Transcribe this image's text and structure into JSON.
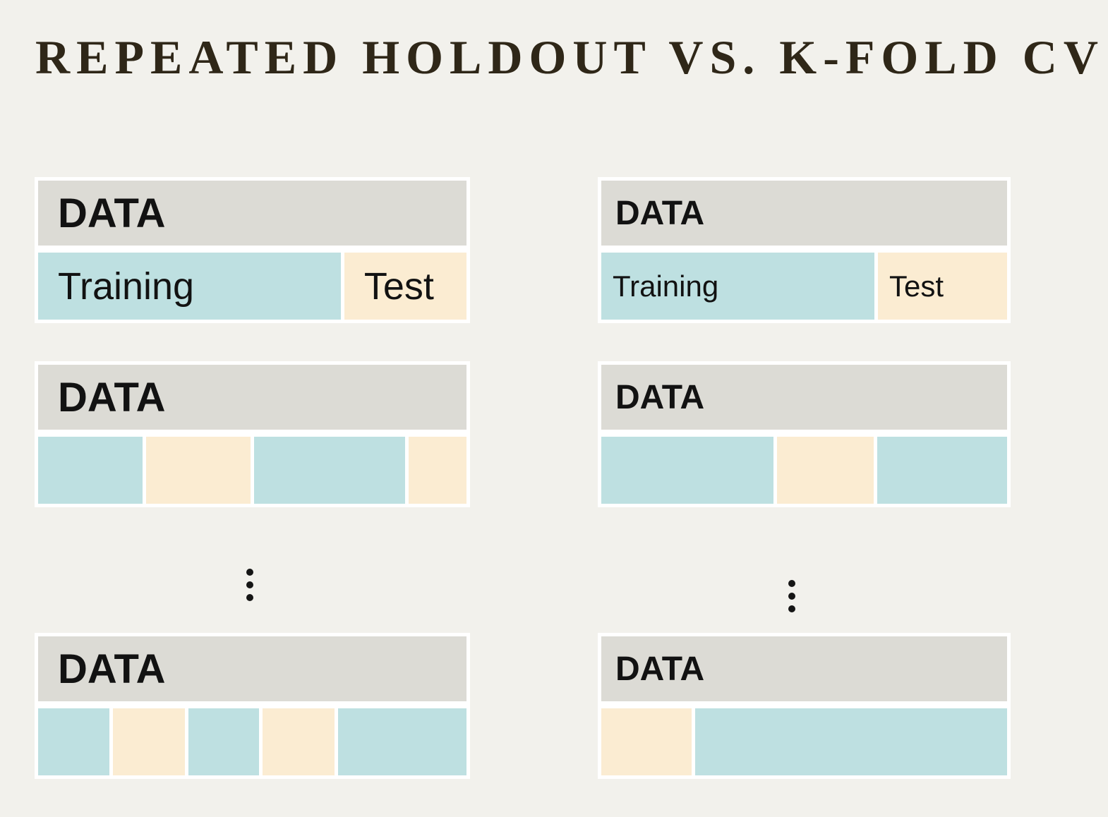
{
  "title": "REPEATED HOLDOUT VS. K-FOLD CV",
  "labels": {
    "data": "DATA",
    "training": "Training",
    "test": "Test"
  },
  "colors": {
    "background": "#f2f1ec",
    "block_frame": "#ffffff",
    "header_bar": "#dcdbd5",
    "training_segment": "#bee0e1",
    "test_segment": "#fbecd2",
    "title_text": "#2f2718",
    "label_text": "#121212",
    "ellipsis_dot": "#151515"
  },
  "columns": {
    "left": {
      "blocks": [
        {
          "segments": [
            {
              "type": "training",
              "size": 431,
              "label_key": "training"
            },
            {
              "type": "test",
              "size": 174,
              "label_key": "test"
            }
          ]
        },
        {
          "segments": [
            {
              "type": "training",
              "size": 148
            },
            {
              "type": "test",
              "size": 149
            },
            {
              "type": "training",
              "size": 215
            },
            {
              "type": "test",
              "size": 82
            }
          ]
        },
        {
          "segments": [
            {
              "type": "training",
              "size": 102
            },
            {
              "type": "test",
              "size": 102
            },
            {
              "type": "training",
              "size": 101
            },
            {
              "type": "test",
              "size": 102
            },
            {
              "type": "training",
              "size": 183
            }
          ]
        }
      ]
    },
    "right": {
      "blocks": [
        {
          "segments": [
            {
              "type": "training",
              "size": 389,
              "label_key": "training"
            },
            {
              "type": "test",
              "size": 184,
              "label_key": "test"
            }
          ]
        },
        {
          "segments": [
            {
              "type": "training",
              "size": 246
            },
            {
              "type": "test",
              "size": 138
            },
            {
              "type": "training",
              "size": 185
            }
          ]
        },
        {
          "segments": [
            {
              "type": "test",
              "size": 129
            },
            {
              "type": "training",
              "size": 446
            }
          ]
        }
      ]
    }
  },
  "ellipsis": {
    "dot_count": 3
  }
}
